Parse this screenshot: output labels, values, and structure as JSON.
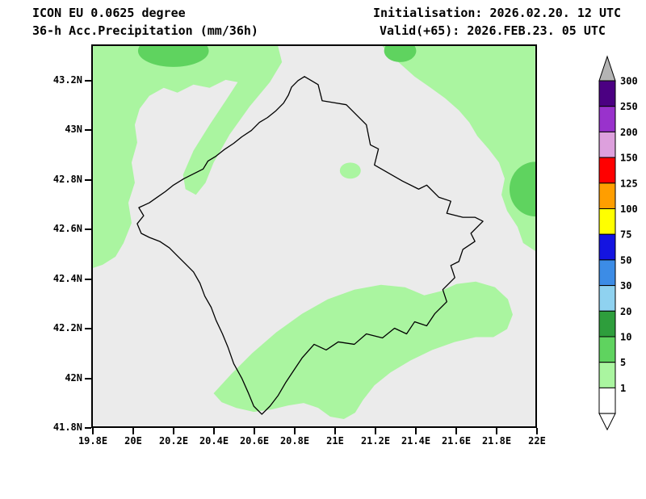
{
  "header": {
    "model": "ICON EU 0.0625 degree",
    "product": "36-h Acc.Precipitation (mm/36h)",
    "initialisation": "Initialisation: 2026.02.20. 12 UTC",
    "valid": "Valid(+65): 2026.FEB.23. 05 UTC"
  },
  "axes": {
    "x_ticks": [
      {
        "label": "19.8E",
        "lon": 19.8
      },
      {
        "label": "20E",
        "lon": 20.0
      },
      {
        "label": "20.2E",
        "lon": 20.2
      },
      {
        "label": "20.4E",
        "lon": 20.4
      },
      {
        "label": "20.6E",
        "lon": 20.6
      },
      {
        "label": "20.8E",
        "lon": 20.8
      },
      {
        "label": "21E",
        "lon": 21.0
      },
      {
        "label": "21.2E",
        "lon": 21.2
      },
      {
        "label": "21.4E",
        "lon": 21.4
      },
      {
        "label": "21.6E",
        "lon": 21.6
      },
      {
        "label": "21.8E",
        "lon": 21.8
      },
      {
        "label": "22E",
        "lon": 22.0
      }
    ],
    "y_ticks": [
      {
        "label": "41.8N",
        "lat": 41.8
      },
      {
        "label": "42N",
        "lat": 42.0
      },
      {
        "label": "42.2N",
        "lat": 42.2
      },
      {
        "label": "42.4N",
        "lat": 42.4
      },
      {
        "label": "42.6N",
        "lat": 42.6
      },
      {
        "label": "42.8N",
        "lat": 42.8
      },
      {
        "label": "43N",
        "lat": 43.0
      },
      {
        "label": "43.2N",
        "lat": 43.2
      }
    ]
  },
  "colorbar": {
    "over_color": "#b4b4b4",
    "under_color": "#ffffff",
    "segments": [
      {
        "label": "300",
        "color": "#4b0082"
      },
      {
        "label": "250",
        "color": "#9932cc"
      },
      {
        "label": "200",
        "color": "#dda0dd"
      },
      {
        "label": "150",
        "color": "#ff0000"
      },
      {
        "label": "125",
        "color": "#ff9e00"
      },
      {
        "label": "100",
        "color": "#ffff00"
      },
      {
        "label": "75",
        "color": "#1414e1"
      },
      {
        "label": "50",
        "color": "#3c8ce6"
      },
      {
        "label": "30",
        "color": "#8fd2f0"
      },
      {
        "label": "20",
        "color": "#2e9e3c"
      },
      {
        "label": "10",
        "color": "#5fd35f"
      },
      {
        "label": "5",
        "color": "#aaf5a0"
      },
      {
        "label": "1",
        "color": "#ffffff"
      }
    ]
  },
  "map": {
    "background_color": "#ebebeb",
    "precip_light_color": "#aaf5a0",
    "precip_medium_color": "#5fd35f",
    "outline_color": "#000000"
  }
}
